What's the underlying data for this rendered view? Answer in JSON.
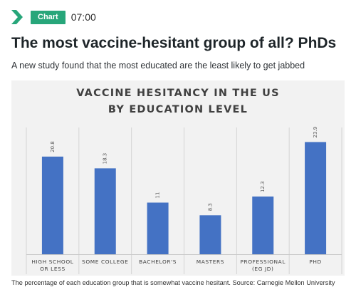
{
  "header": {
    "badge": "Chart",
    "time": "07:00",
    "headline": "The most vaccine-hesitant group of all? PhDs",
    "subhead": "A new study found that the most educated are the least likely to get jabbed"
  },
  "caption": "The percentage of each education group that is somewhat vaccine hesitant. Source: Carnegie Mellon University",
  "colors": {
    "brand_green": "#27a67a",
    "bar": "#4472c4",
    "panel": "#f2f2f2"
  },
  "chart_data": {
    "type": "bar",
    "title": [
      "VACCINE HESITANCY IN THE US",
      "BY EDUCATION LEVEL"
    ],
    "categories": [
      [
        "HIGH SCHOOL",
        "OR LESS"
      ],
      [
        "SOME COLLEGE"
      ],
      [
        "BACHELOR'S"
      ],
      [
        "MASTERS"
      ],
      [
        "PROFESSIONAL",
        "(EG JD)"
      ],
      [
        "PHD"
      ]
    ],
    "values": [
      20.8,
      18.3,
      11,
      8.3,
      12.3,
      23.9
    ],
    "data_labels": [
      "20.8",
      "18.3",
      "11",
      "8.3",
      "12.3",
      "23.9"
    ],
    "ylim": [
      0,
      27
    ],
    "grid": "vertical category separators",
    "legend": "none"
  }
}
